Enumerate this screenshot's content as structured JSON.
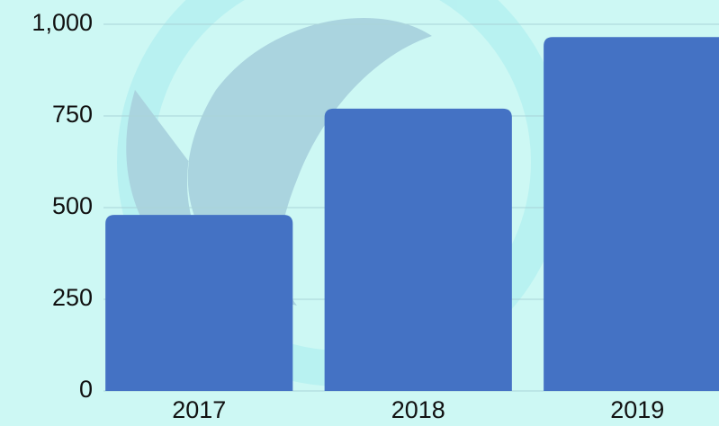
{
  "chart_data": {
    "type": "bar",
    "categories": [
      "2017",
      "2018",
      "2019"
    ],
    "values": [
      480,
      770,
      965
    ],
    "color": "#4472c4",
    "ylim": [
      0,
      1000
    ],
    "yticks": [
      0,
      250,
      500,
      750,
      {
        "value": 1000,
        "label": "1,000"
      }
    ],
    "grid": true
  }
}
